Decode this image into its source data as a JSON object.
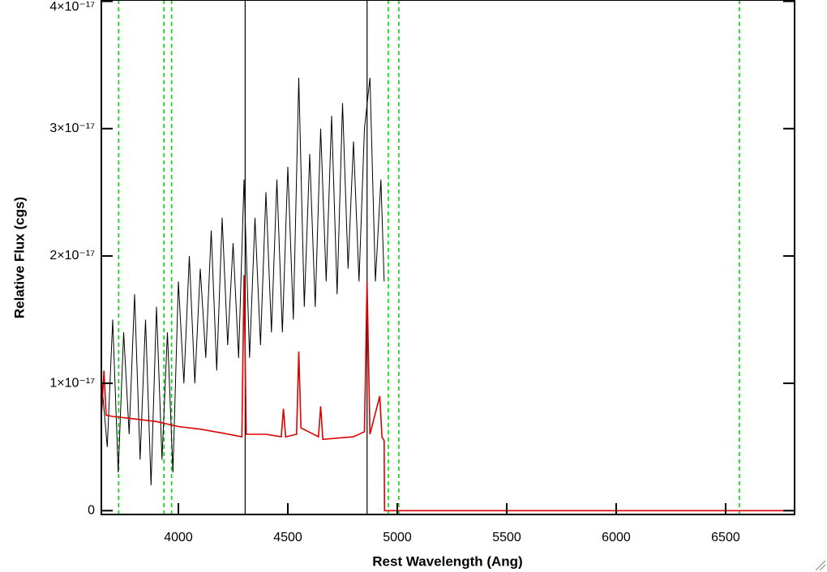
{
  "chart_data": {
    "type": "line",
    "x_label": "Rest Wavelength (Ang)",
    "y_label": "Relative Flux (cgs)",
    "xlim": [
      3648,
      6815
    ],
    "ylim": [
      -3e-19,
      4.01e-17
    ],
    "xticks": [
      4000,
      4500,
      5000,
      5500,
      6000,
      6500
    ],
    "yticks": [
      0,
      {
        "value": 1e-17,
        "label": "1×10⁻¹⁷"
      },
      {
        "value": 2e-17,
        "label": "2×10⁻¹⁷"
      },
      {
        "value": 3e-17,
        "label": "3×10⁻¹⁷"
      },
      {
        "value": 4e-17,
        "label": "4×10⁻¹⁷"
      }
    ],
    "series": [
      {
        "color": "#000000",
        "x": [
          3650,
          3675,
          3700,
          3725,
          3750,
          3775,
          3800,
          3825,
          3850,
          3875,
          3900,
          3925,
          3950,
          3975,
          4000,
          4025,
          4050,
          4075,
          4100,
          4125,
          4150,
          4175,
          4200,
          4225,
          4250,
          4275,
          4300,
          4325,
          4350,
          4375,
          4400,
          4425,
          4450,
          4475,
          4500,
          4525,
          4550,
          4575,
          4600,
          4625,
          4650,
          4675,
          4700,
          4725,
          4750,
          4775,
          4800,
          4825,
          4850,
          4875,
          4900,
          4925,
          4940
        ],
        "values": [
          1e-17,
          5e-18,
          1.5e-17,
          3e-18,
          1.4e-17,
          6e-18,
          1.7e-17,
          4e-18,
          1.5e-17,
          2e-18,
          1.6e-17,
          4e-18,
          1.4e-17,
          3e-18,
          1.8e-17,
          1e-17,
          2e-17,
          1e-17,
          1.9e-17,
          1.2e-17,
          2.2e-17,
          1.1e-17,
          2.3e-17,
          1.3e-17,
          2.1e-17,
          1.2e-17,
          2.6e-17,
          1.2e-17,
          2.3e-17,
          1.3e-17,
          2.5e-17,
          1.4e-17,
          2.6e-17,
          1.4e-17,
          2.7e-17,
          1.5e-17,
          3.4e-17,
          1.6e-17,
          2.8e-17,
          1.6e-17,
          3e-17,
          1.8e-17,
          3.1e-17,
          1.7e-17,
          3.2e-17,
          1.9e-17,
          2.9e-17,
          1.8e-17,
          3e-17,
          3.4e-17,
          1.8e-17,
          2.6e-17,
          1.8e-17
        ]
      },
      {
        "color": "#dd0000",
        "x": [
          3650,
          3660,
          3670,
          3700,
          3800,
          3900,
          4000,
          4100,
          4200,
          4290,
          4300,
          4310,
          4400,
          4470,
          4480,
          4490,
          4540,
          4550,
          4560,
          4640,
          4650,
          4660,
          4800,
          4850,
          4862,
          4875,
          4920,
          4930,
          4940,
          4942,
          6815
        ],
        "values": [
          7.8e-18,
          1.1e-17,
          7.5e-18,
          7.4e-18,
          7.2e-18,
          7e-18,
          6.6e-18,
          6.4e-18,
          6.1e-18,
          5.8e-18,
          1.85e-17,
          6e-18,
          6e-18,
          5.8e-18,
          8e-18,
          5.8e-18,
          6e-18,
          1.25e-17,
          6.5e-18,
          5.8e-18,
          8.2e-18,
          5.6e-18,
          5.8e-18,
          6.2e-18,
          1.8e-17,
          6e-18,
          9e-18,
          5.8e-18,
          5.5e-18,
          0,
          0
        ]
      }
    ],
    "vertical_lines": [
      {
        "x": 4305,
        "color": "#000000",
        "style": "solid"
      },
      {
        "x": 4862,
        "color": "#000000",
        "style": "solid"
      },
      {
        "x": 3727,
        "color": "#00dd00",
        "style": "dashed"
      },
      {
        "x": 3934,
        "color": "#00dd00",
        "style": "dashed"
      },
      {
        "x": 3969,
        "color": "#00dd00",
        "style": "dashed"
      },
      {
        "x": 4959,
        "color": "#00dd00",
        "style": "dashed"
      },
      {
        "x": 5007,
        "color": "#00dd00",
        "style": "dashed"
      },
      {
        "x": 6563,
        "color": "#00dd00",
        "style": "dashed"
      }
    ]
  }
}
